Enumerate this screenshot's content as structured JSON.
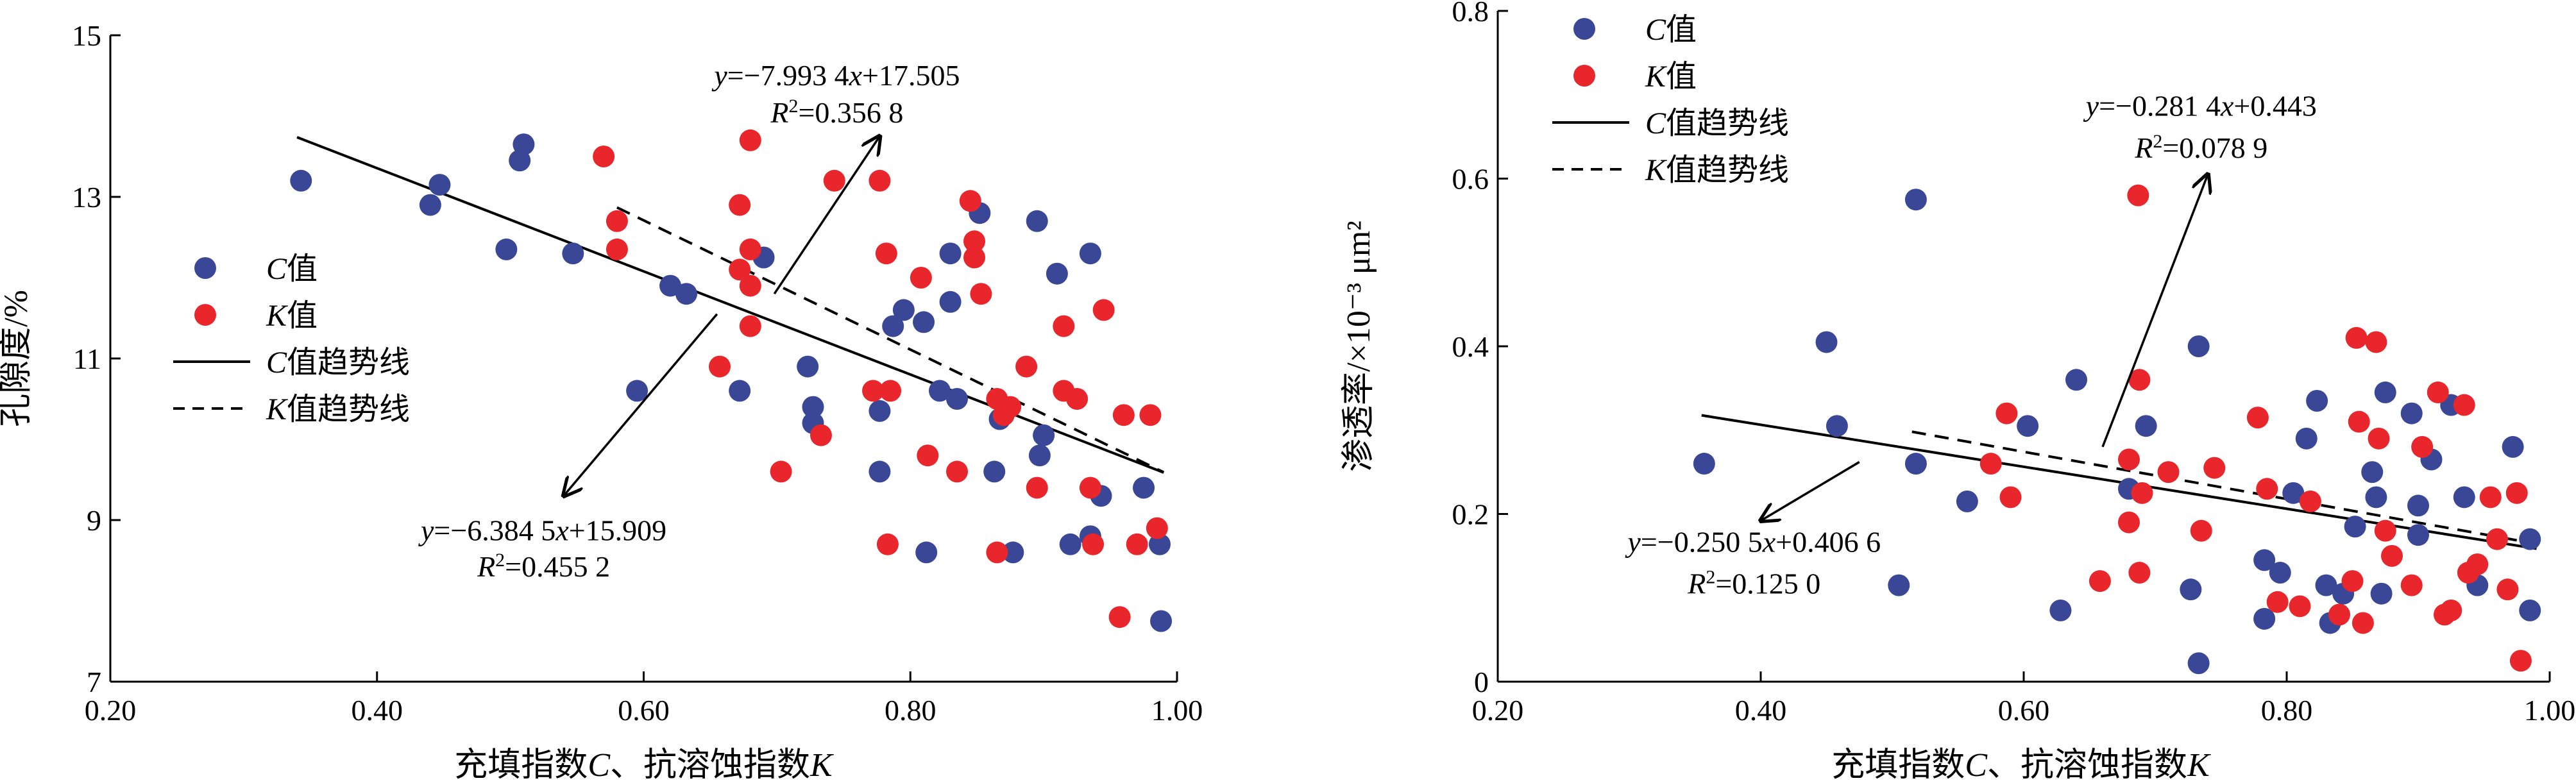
{
  "colors": {
    "c_series": "#3a4796",
    "k_series": "#e8262b",
    "line": "#000000"
  },
  "chart_data": [
    {
      "type": "scatter",
      "xlabel": {
        "prefix": "充填指数",
        "c_var": "C",
        "sep": "、抗溶蚀指数",
        "k_var": "K"
      },
      "ylabel": "孔隙度/%",
      "xlim": [
        0.2,
        1.0
      ],
      "ylim": [
        7,
        15
      ],
      "xticks": [
        0.2,
        0.4,
        0.6,
        0.8,
        1.0
      ],
      "xtick_labels": [
        "0.20",
        "0.40",
        "0.60",
        "0.80",
        "1.00"
      ],
      "yticks": [
        7,
        9,
        11,
        13,
        15
      ],
      "ytick_labels": [
        "7",
        "9",
        "11",
        "13",
        "15"
      ],
      "grid": false,
      "legend": {
        "placement": "center-left",
        "c_value": {
          "var": "C",
          "text": "值"
        },
        "k_value": {
          "var": "K",
          "text": "值"
        },
        "c_trend": {
          "var": "C",
          "text": "值趋势线"
        },
        "k_trend": {
          "var": "K",
          "text": "值趋势线"
        }
      },
      "series": [
        {
          "key": "c",
          "points": [
            [
              0.343,
              13.2
            ],
            [
              0.44,
              12.9
            ],
            [
              0.447,
              13.15
            ],
            [
              0.497,
              12.35
            ],
            [
              0.507,
              13.45
            ],
            [
              0.51,
              13.65
            ],
            [
              0.547,
              12.3
            ],
            [
              0.595,
              10.6
            ],
            [
              0.62,
              11.9
            ],
            [
              0.632,
              11.8
            ],
            [
              0.672,
              10.6
            ],
            [
              0.69,
              12.25
            ],
            [
              0.723,
              10.9
            ],
            [
              0.727,
              10.4
            ],
            [
              0.727,
              10.2
            ],
            [
              0.777,
              9.6
            ],
            [
              0.777,
              10.35
            ],
            [
              0.787,
              11.4
            ],
            [
              0.795,
              11.6
            ],
            [
              0.81,
              11.45
            ],
            [
              0.812,
              8.6
            ],
            [
              0.822,
              10.6
            ],
            [
              0.83,
              12.3
            ],
            [
              0.83,
              11.7
            ],
            [
              0.835,
              10.5
            ],
            [
              0.852,
              12.8
            ],
            [
              0.863,
              9.6
            ],
            [
              0.867,
              10.25
            ],
            [
              0.877,
              8.6
            ],
            [
              0.895,
              12.7
            ],
            [
              0.897,
              9.8
            ],
            [
              0.9,
              10.05
            ],
            [
              0.91,
              12.05
            ],
            [
              0.92,
              8.7
            ],
            [
              0.935,
              12.3
            ],
            [
              0.935,
              8.8
            ],
            [
              0.943,
              9.3
            ],
            [
              0.975,
              9.4
            ],
            [
              0.987,
              8.7
            ],
            [
              0.988,
              7.75
            ]
          ]
        },
        {
          "key": "k",
          "points": [
            [
              0.57,
              13.5
            ],
            [
              0.58,
              12.7
            ],
            [
              0.58,
              12.35
            ],
            [
              0.657,
              10.9
            ],
            [
              0.672,
              12.9
            ],
            [
              0.672,
              12.1
            ],
            [
              0.68,
              12.35
            ],
            [
              0.68,
              13.7
            ],
            [
              0.68,
              11.9
            ],
            [
              0.68,
              11.4
            ],
            [
              0.703,
              9.6
            ],
            [
              0.733,
              10.05
            ],
            [
              0.743,
              13.2
            ],
            [
              0.772,
              10.6
            ],
            [
              0.777,
              13.2
            ],
            [
              0.782,
              12.3
            ],
            [
              0.783,
              8.7
            ],
            [
              0.785,
              10.6
            ],
            [
              0.808,
              12.0
            ],
            [
              0.813,
              9.8
            ],
            [
              0.835,
              9.6
            ],
            [
              0.845,
              12.95
            ],
            [
              0.848,
              12.45
            ],
            [
              0.848,
              12.25
            ],
            [
              0.853,
              11.8
            ],
            [
              0.865,
              8.6
            ],
            [
              0.865,
              10.5
            ],
            [
              0.87,
              10.3
            ],
            [
              0.875,
              10.4
            ],
            [
              0.887,
              10.9
            ],
            [
              0.895,
              9.4
            ],
            [
              0.915,
              11.4
            ],
            [
              0.915,
              10.6
            ],
            [
              0.925,
              10.5
            ],
            [
              0.935,
              9.4
            ],
            [
              0.937,
              8.7
            ],
            [
              0.945,
              11.6
            ],
            [
              0.957,
              7.8
            ],
            [
              0.96,
              10.3
            ],
            [
              0.97,
              8.7
            ],
            [
              0.98,
              10.3
            ],
            [
              0.985,
              8.9
            ]
          ]
        }
      ],
      "trendlines": [
        {
          "key": "c",
          "style": "solid",
          "slope": -6.3845,
          "intercept": 15.909,
          "x_range": [
            0.34,
            0.99
          ]
        },
        {
          "key": "k",
          "style": "dashed",
          "slope": -7.9934,
          "intercept": 17.505,
          "x_range": [
            0.58,
            0.99
          ]
        }
      ],
      "annotations": [
        {
          "series": "k",
          "eq_line1": "y=−7.993 4x+17.505",
          "r2_value": "=0.356 8",
          "text_x": 0.745,
          "text_y1": 14.38,
          "text_y2": 13.92,
          "arrow": {
            "from": [
              0.698,
              11.8
            ],
            "to": [
              0.777,
              13.75
            ]
          }
        },
        {
          "series": "c",
          "eq_line1": "y=−6.384 5x+15.909",
          "r2_value": "=0.455 2",
          "text_x": 0.525,
          "text_y1": 8.75,
          "text_y2": 8.3,
          "arrow": {
            "from": [
              0.655,
              11.55
            ],
            "to": [
              0.54,
              9.3
            ]
          }
        }
      ]
    },
    {
      "type": "scatter",
      "xlabel": {
        "prefix": "充填指数",
        "c_var": "C",
        "sep": "、抗溶蚀指数",
        "k_var": "K"
      },
      "ylabel": "渗透率/×10⁻³ μm²",
      "xlim": [
        0.2,
        1.0
      ],
      "ylim": [
        0,
        0.8
      ],
      "xticks": [
        0.2,
        0.4,
        0.6,
        0.8,
        1.0
      ],
      "xtick_labels": [
        "0.20",
        "0.40",
        "0.60",
        "0.80",
        "1.00"
      ],
      "yticks": [
        0,
        0.2,
        0.4,
        0.6,
        0.8
      ],
      "ytick_labels": [
        "0",
        "0.2",
        "0.4",
        "0.6",
        "0.8"
      ],
      "grid": false,
      "legend": {
        "placement": "top-left",
        "c_value": {
          "var": "C",
          "text": "值"
        },
        "k_value": {
          "var": "K",
          "text": "值"
        },
        "c_trend": {
          "var": "C",
          "text": "值趋势线"
        },
        "k_trend": {
          "var": "K",
          "text": "值趋势线"
        }
      },
      "series": [
        {
          "key": "c",
          "points": [
            [
              0.357,
              0.26
            ],
            [
              0.45,
              0.405
            ],
            [
              0.458,
              0.305
            ],
            [
              0.505,
              0.115
            ],
            [
              0.518,
              0.575
            ],
            [
              0.518,
              0.26
            ],
            [
              0.557,
              0.215
            ],
            [
              0.603,
              0.305
            ],
            [
              0.628,
              0.085
            ],
            [
              0.64,
              0.36
            ],
            [
              0.68,
              0.23
            ],
            [
              0.693,
              0.305
            ],
            [
              0.727,
              0.11
            ],
            [
              0.733,
              0.4
            ],
            [
              0.733,
              0.022
            ],
            [
              0.783,
              0.145
            ],
            [
              0.783,
              0.075
            ],
            [
              0.795,
              0.13
            ],
            [
              0.805,
              0.225
            ],
            [
              0.815,
              0.29
            ],
            [
              0.823,
              0.335
            ],
            [
              0.83,
              0.115
            ],
            [
              0.833,
              0.07
            ],
            [
              0.843,
              0.105
            ],
            [
              0.852,
              0.185
            ],
            [
              0.865,
              0.25
            ],
            [
              0.868,
              0.22
            ],
            [
              0.872,
              0.105
            ],
            [
              0.875,
              0.345
            ],
            [
              0.895,
              0.32
            ],
            [
              0.9,
              0.21
            ],
            [
              0.9,
              0.175
            ],
            [
              0.91,
              0.265
            ],
            [
              0.925,
              0.33
            ],
            [
              0.935,
              0.22
            ],
            [
              0.945,
              0.115
            ],
            [
              0.972,
              0.28
            ],
            [
              0.985,
              0.17
            ],
            [
              0.985,
              0.085
            ]
          ]
        },
        {
          "key": "k",
          "points": [
            [
              0.575,
              0.26
            ],
            [
              0.587,
              0.32
            ],
            [
              0.59,
              0.22
            ],
            [
              0.658,
              0.12
            ],
            [
              0.68,
              0.265
            ],
            [
              0.68,
              0.19
            ],
            [
              0.687,
              0.58
            ],
            [
              0.688,
              0.13
            ],
            [
              0.688,
              0.36
            ],
            [
              0.69,
              0.225
            ],
            [
              0.71,
              0.25
            ],
            [
              0.735,
              0.18
            ],
            [
              0.745,
              0.255
            ],
            [
              0.778,
              0.315
            ],
            [
              0.785,
              0.23
            ],
            [
              0.793,
              0.095
            ],
            [
              0.81,
              0.09
            ],
            [
              0.818,
              0.215
            ],
            [
              0.84,
              0.08
            ],
            [
              0.85,
              0.12
            ],
            [
              0.853,
              0.41
            ],
            [
              0.855,
              0.31
            ],
            [
              0.858,
              0.07
            ],
            [
              0.868,
              0.405
            ],
            [
              0.87,
              0.29
            ],
            [
              0.875,
              0.18
            ],
            [
              0.88,
              0.15
            ],
            [
              0.895,
              0.115
            ],
            [
              0.903,
              0.28
            ],
            [
              0.915,
              0.345
            ],
            [
              0.92,
              0.08
            ],
            [
              0.925,
              0.085
            ],
            [
              0.935,
              0.33
            ],
            [
              0.938,
              0.13
            ],
            [
              0.945,
              0.14
            ],
            [
              0.955,
              0.22
            ],
            [
              0.96,
              0.17
            ],
            [
              0.968,
              0.11
            ],
            [
              0.975,
              0.225
            ],
            [
              0.978,
              0.025
            ]
          ]
        }
      ],
      "trendlines": [
        {
          "key": "c",
          "style": "solid",
          "slope": -0.2505,
          "intercept": 0.4066,
          "x_range": [
            0.355,
            0.99
          ]
        },
        {
          "key": "k",
          "style": "dashed",
          "slope": -0.2814,
          "intercept": 0.443,
          "x_range": [
            0.515,
            0.99
          ]
        }
      ],
      "annotations": [
        {
          "series": "k",
          "eq_line1": "y=−0.281 4x+0.443",
          "r2_value": "=0.078 9",
          "text_x": 0.735,
          "text_y1": 0.675,
          "text_y2": 0.625,
          "arrow": {
            "from": [
              0.66,
              0.28
            ],
            "to": [
              0.74,
              0.605
            ]
          }
        },
        {
          "series": "c",
          "eq_line1": "y=−0.250 5x+0.406 6",
          "r2_value": "=0.125 0",
          "text_x": 0.395,
          "text_y1": 0.155,
          "text_y2": 0.105,
          "arrow": {
            "from": [
              0.475,
              0.262
            ],
            "to": [
              0.4,
              0.192
            ]
          }
        }
      ]
    }
  ]
}
